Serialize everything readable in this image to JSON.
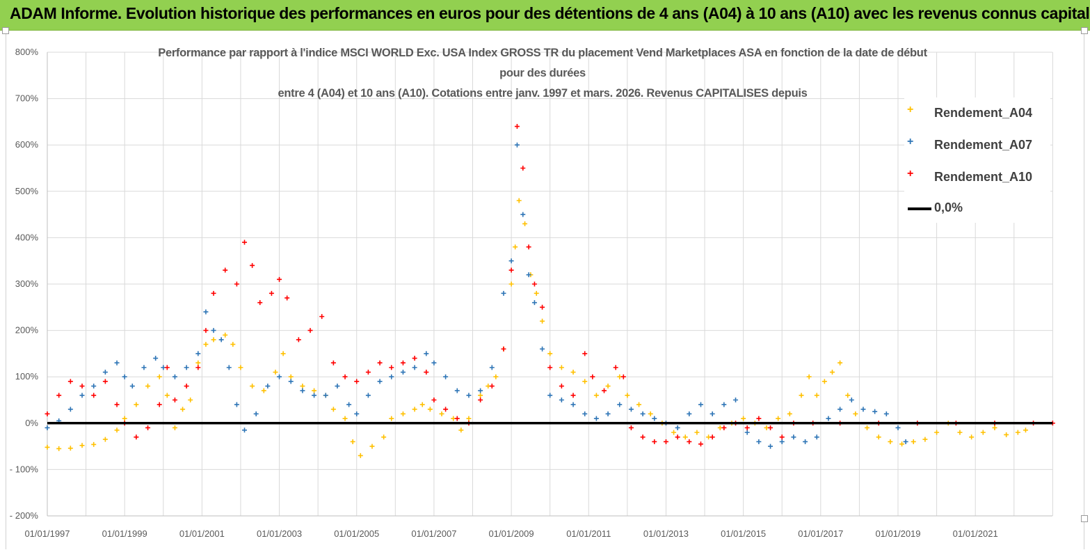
{
  "banner": {
    "title": "ADAM Informe. Evolution historique des performances en euros pour des détentions de 4 ans (A04) à 10 ans (A10) avec les revenus connus capitalisés",
    "background_color": "#92d050"
  },
  "chart_data": {
    "type": "scatter",
    "title_lines": [
      "Performance par rapport à l'indice MSCI WORLD Exc. USA Index GROSS TR  du placement Vend Marketplaces ASA en fonction de la date de début",
      "pour des durées",
      "entre 4 (A04) et 10 ans (A10). Cotations entre janv. 1997 et mars. 2026. Revenus CAPITALISES depuis"
    ],
    "xlabel": "",
    "ylabel": "",
    "ylim": [
      -200,
      800
    ],
    "xlim": [
      "01/01/1997",
      "01/01/2023"
    ],
    "y_ticks": [
      800,
      700,
      600,
      500,
      400,
      300,
      200,
      100,
      0,
      -100,
      -200
    ],
    "y_tick_labels": [
      "800%",
      "700%",
      "600%",
      "500%",
      "400%",
      "300%",
      "200%",
      "100%",
      "0%",
      "- 100%",
      "- 200%"
    ],
    "x_tick_labels": [
      "01/01/1997",
      "01/01/1999",
      "01/01/2001",
      "01/01/2003",
      "01/01/2005",
      "01/01/2007",
      "01/01/2009",
      "01/01/2011",
      "01/01/2013",
      "01/01/2015",
      "01/01/2017",
      "01/01/2019",
      "01/01/2021"
    ],
    "grid": true,
    "legend_position": "top-right",
    "series": [
      {
        "name": "Rendement_A04",
        "color": "#ffc000",
        "marker": "+",
        "points": [
          [
            1997.0,
            -52
          ],
          [
            1997.3,
            -55
          ],
          [
            1997.6,
            -54
          ],
          [
            1997.9,
            -48
          ],
          [
            1998.2,
            -46
          ],
          [
            1998.5,
            -35
          ],
          [
            1998.8,
            -15
          ],
          [
            1999.0,
            10
          ],
          [
            1999.3,
            40
          ],
          [
            1999.6,
            80
          ],
          [
            1999.9,
            100
          ],
          [
            2000.1,
            60
          ],
          [
            2000.3,
            -10
          ],
          [
            2000.5,
            30
          ],
          [
            2000.7,
            50
          ],
          [
            2000.9,
            130
          ],
          [
            2001.1,
            170
          ],
          [
            2001.3,
            180
          ],
          [
            2001.6,
            190
          ],
          [
            2001.8,
            170
          ],
          [
            2002.0,
            120
          ],
          [
            2002.3,
            80
          ],
          [
            2002.6,
            70
          ],
          [
            2002.9,
            110
          ],
          [
            2003.1,
            150
          ],
          [
            2003.3,
            100
          ],
          [
            2003.6,
            80
          ],
          [
            2003.9,
            70
          ],
          [
            2004.2,
            60
          ],
          [
            2004.4,
            30
          ],
          [
            2004.7,
            10
          ],
          [
            2004.9,
            -40
          ],
          [
            2005.1,
            -70
          ],
          [
            2005.4,
            -50
          ],
          [
            2005.7,
            -30
          ],
          [
            2005.9,
            10
          ],
          [
            2006.2,
            20
          ],
          [
            2006.5,
            30
          ],
          [
            2006.7,
            40
          ],
          [
            2006.9,
            30
          ],
          [
            2007.2,
            20
          ],
          [
            2007.5,
            10
          ],
          [
            2007.7,
            -15
          ],
          [
            2007.9,
            10
          ],
          [
            2008.2,
            60
          ],
          [
            2008.4,
            80
          ],
          [
            2008.6,
            100
          ],
          [
            2008.8,
            160
          ],
          [
            2009.0,
            300
          ],
          [
            2009.1,
            380
          ],
          [
            2009.2,
            480
          ],
          [
            2009.35,
            430
          ],
          [
            2009.5,
            320
          ],
          [
            2009.65,
            280
          ],
          [
            2009.8,
            220
          ],
          [
            2010.0,
            150
          ],
          [
            2010.3,
            120
          ],
          [
            2010.6,
            110
          ],
          [
            2010.9,
            90
          ],
          [
            2011.2,
            60
          ],
          [
            2011.5,
            80
          ],
          [
            2011.8,
            100
          ],
          [
            2012.0,
            60
          ],
          [
            2012.3,
            40
          ],
          [
            2012.6,
            20
          ],
          [
            2012.9,
            0
          ],
          [
            2013.2,
            -20
          ],
          [
            2013.5,
            -30
          ],
          [
            2013.8,
            -20
          ],
          [
            2014.1,
            -30
          ],
          [
            2014.4,
            -10
          ],
          [
            2014.7,
            0
          ],
          [
            2015.0,
            10
          ],
          [
            2015.3,
            0
          ],
          [
            2015.6,
            -10
          ],
          [
            2015.9,
            10
          ],
          [
            2016.2,
            20
          ],
          [
            2016.5,
            60
          ],
          [
            2016.7,
            100
          ],
          [
            2016.9,
            60
          ],
          [
            2017.1,
            90
          ],
          [
            2017.3,
            110
          ],
          [
            2017.5,
            130
          ],
          [
            2017.7,
            60
          ],
          [
            2017.9,
            20
          ],
          [
            2018.2,
            -10
          ],
          [
            2018.5,
            -30
          ],
          [
            2018.8,
            -40
          ],
          [
            2019.1,
            -45
          ],
          [
            2019.4,
            -40
          ],
          [
            2019.7,
            -35
          ],
          [
            2020.0,
            -20
          ],
          [
            2020.3,
            0
          ],
          [
            2020.6,
            -20
          ],
          [
            2020.9,
            -30
          ],
          [
            2021.2,
            -20
          ],
          [
            2021.5,
            -10
          ],
          [
            2021.8,
            -25
          ],
          [
            2022.1,
            -20
          ],
          [
            2022.3,
            -15
          ]
        ]
      },
      {
        "name": "Rendement_A07",
        "color": "#2e75b6",
        "marker": "+",
        "points": [
          [
            1997.0,
            -10
          ],
          [
            1997.3,
            5
          ],
          [
            1997.6,
            30
          ],
          [
            1997.9,
            60
          ],
          [
            1998.2,
            80
          ],
          [
            1998.5,
            110
          ],
          [
            1998.8,
            130
          ],
          [
            1999.0,
            100
          ],
          [
            1999.2,
            80
          ],
          [
            1999.5,
            120
          ],
          [
            1999.8,
            140
          ],
          [
            2000.0,
            120
          ],
          [
            2000.3,
            100
          ],
          [
            2000.6,
            120
          ],
          [
            2000.9,
            150
          ],
          [
            2001.1,
            240
          ],
          [
            2001.3,
            200
          ],
          [
            2001.5,
            180
          ],
          [
            2001.7,
            120
          ],
          [
            2001.9,
            40
          ],
          [
            2002.1,
            -15
          ],
          [
            2002.4,
            20
          ],
          [
            2002.7,
            80
          ],
          [
            2003.0,
            100
          ],
          [
            2003.3,
            90
          ],
          [
            2003.6,
            70
          ],
          [
            2003.9,
            60
          ],
          [
            2004.2,
            60
          ],
          [
            2004.5,
            80
          ],
          [
            2004.8,
            40
          ],
          [
            2005.0,
            20
          ],
          [
            2005.3,
            60
          ],
          [
            2005.6,
            90
          ],
          [
            2005.9,
            100
          ],
          [
            2006.2,
            110
          ],
          [
            2006.5,
            120
          ],
          [
            2006.8,
            150
          ],
          [
            2007.0,
            130
          ],
          [
            2007.3,
            100
          ],
          [
            2007.6,
            70
          ],
          [
            2007.9,
            60
          ],
          [
            2008.2,
            70
          ],
          [
            2008.5,
            120
          ],
          [
            2008.8,
            280
          ],
          [
            2009.0,
            350
          ],
          [
            2009.15,
            600
          ],
          [
            2009.3,
            450
          ],
          [
            2009.45,
            320
          ],
          [
            2009.6,
            260
          ],
          [
            2009.8,
            160
          ],
          [
            2010.0,
            60
          ],
          [
            2010.3,
            50
          ],
          [
            2010.6,
            40
          ],
          [
            2010.9,
            20
          ],
          [
            2011.2,
            10
          ],
          [
            2011.5,
            20
          ],
          [
            2011.8,
            40
          ],
          [
            2012.1,
            30
          ],
          [
            2012.4,
            20
          ],
          [
            2012.7,
            10
          ],
          [
            2013.0,
            0
          ],
          [
            2013.3,
            -10
          ],
          [
            2013.6,
            20
          ],
          [
            2013.9,
            40
          ],
          [
            2014.2,
            20
          ],
          [
            2014.5,
            40
          ],
          [
            2014.8,
            50
          ],
          [
            2015.1,
            -20
          ],
          [
            2015.4,
            -40
          ],
          [
            2015.7,
            -50
          ],
          [
            2016.0,
            -40
          ],
          [
            2016.3,
            -30
          ],
          [
            2016.6,
            -40
          ],
          [
            2016.9,
            -30
          ],
          [
            2017.2,
            10
          ],
          [
            2017.5,
            30
          ],
          [
            2017.8,
            50
          ],
          [
            2018.1,
            30
          ],
          [
            2018.4,
            25
          ],
          [
            2018.7,
            20
          ],
          [
            2019.0,
            -10
          ],
          [
            2019.2,
            -40
          ]
        ]
      },
      {
        "name": "Rendement_A10",
        "color": "#ff0000",
        "marker": "+",
        "points": [
          [
            1997.0,
            20
          ],
          [
            1997.3,
            60
          ],
          [
            1997.6,
            90
          ],
          [
            1997.9,
            80
          ],
          [
            1998.2,
            60
          ],
          [
            1998.5,
            90
          ],
          [
            1998.8,
            40
          ],
          [
            1999.0,
            0
          ],
          [
            1999.3,
            -30
          ],
          [
            1999.6,
            -10
          ],
          [
            1999.9,
            40
          ],
          [
            2000.1,
            120
          ],
          [
            2000.3,
            50
          ],
          [
            2000.6,
            80
          ],
          [
            2000.9,
            120
          ],
          [
            2001.1,
            200
          ],
          [
            2001.3,
            280
          ],
          [
            2001.6,
            330
          ],
          [
            2001.9,
            300
          ],
          [
            2002.1,
            390
          ],
          [
            2002.3,
            340
          ],
          [
            2002.5,
            260
          ],
          [
            2002.8,
            280
          ],
          [
            2003.0,
            310
          ],
          [
            2003.2,
            270
          ],
          [
            2003.5,
            180
          ],
          [
            2003.8,
            200
          ],
          [
            2004.1,
            230
          ],
          [
            2004.4,
            130
          ],
          [
            2004.7,
            100
          ],
          [
            2005.0,
            90
          ],
          [
            2005.3,
            110
          ],
          [
            2005.6,
            130
          ],
          [
            2005.9,
            120
          ],
          [
            2006.2,
            130
          ],
          [
            2006.5,
            140
          ],
          [
            2006.8,
            110
          ],
          [
            2007.0,
            50
          ],
          [
            2007.3,
            30
          ],
          [
            2007.6,
            10
          ],
          [
            2007.9,
            0
          ],
          [
            2008.2,
            50
          ],
          [
            2008.5,
            80
          ],
          [
            2008.8,
            160
          ],
          [
            2009.0,
            330
          ],
          [
            2009.15,
            640
          ],
          [
            2009.3,
            550
          ],
          [
            2009.45,
            380
          ],
          [
            2009.6,
            300
          ],
          [
            2009.8,
            250
          ],
          [
            2010.0,
            120
          ],
          [
            2010.3,
            80
          ],
          [
            2010.6,
            60
          ],
          [
            2010.9,
            150
          ],
          [
            2011.1,
            100
          ],
          [
            2011.4,
            70
          ],
          [
            2011.7,
            120
          ],
          [
            2011.9,
            100
          ],
          [
            2012.1,
            -10
          ],
          [
            2012.4,
            -30
          ],
          [
            2012.7,
            -40
          ],
          [
            2013.0,
            -40
          ],
          [
            2013.3,
            -30
          ],
          [
            2013.6,
            -40
          ],
          [
            2013.9,
            -45
          ],
          [
            2014.2,
            -30
          ],
          [
            2014.5,
            -10
          ],
          [
            2014.8,
            0
          ],
          [
            2015.1,
            -10
          ],
          [
            2015.4,
            10
          ],
          [
            2015.7,
            -10
          ],
          [
            2016.0,
            -30
          ],
          [
            2016.3,
            0
          ],
          [
            2016.8,
            0
          ],
          [
            2017.5,
            0
          ],
          [
            2018.5,
            0
          ],
          [
            2019.5,
            0
          ],
          [
            2020.5,
            0
          ],
          [
            2021.5,
            0
          ],
          [
            2022.5,
            0
          ],
          [
            2023.0,
            0
          ]
        ]
      },
      {
        "name": "0,0%",
        "color": "#000000",
        "marker": "line",
        "points": [
          [
            1997.0,
            0
          ],
          [
            2023.0,
            0
          ]
        ]
      }
    ]
  }
}
